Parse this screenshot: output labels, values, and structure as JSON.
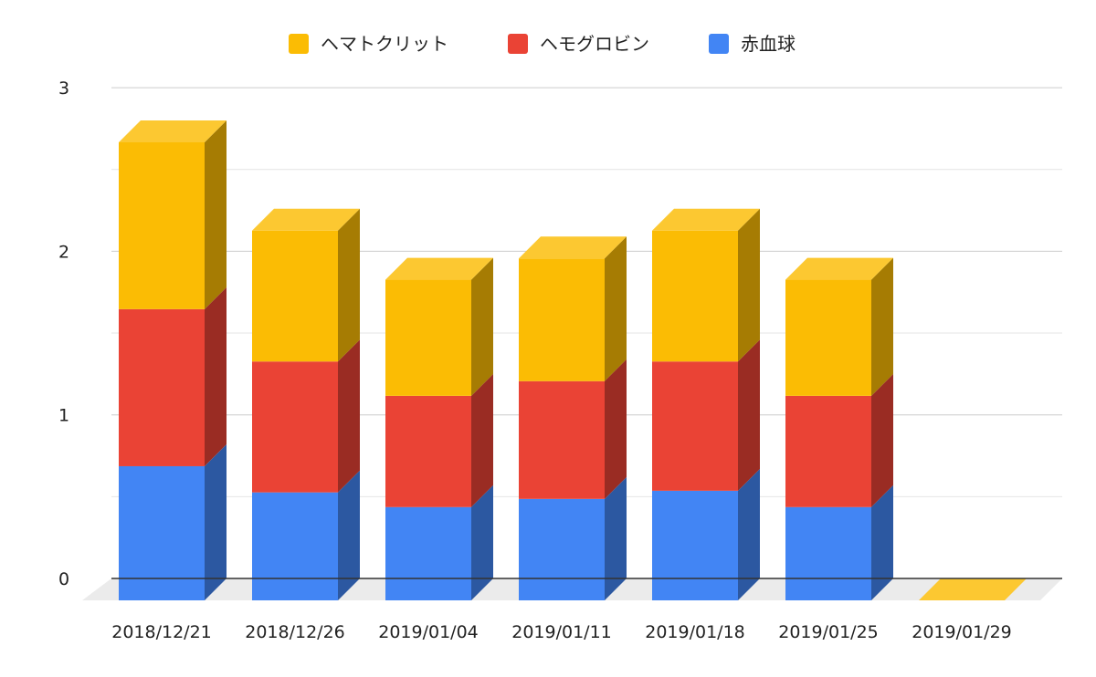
{
  "chart_data": {
    "type": "bar",
    "stacked": true,
    "three_d": true,
    "categories": [
      "2018/12/21",
      "2018/12/26",
      "2019/01/04",
      "2019/01/11",
      "2019/01/18",
      "2019/01/25",
      "2019/01/29"
    ],
    "series": [
      {
        "name": "赤血球",
        "color": "#4285f4",
        "values": [
          0.82,
          0.66,
          0.57,
          0.62,
          0.67,
          0.57,
          0
        ]
      },
      {
        "name": "ヘモグロビン",
        "color": "#ea4335",
        "values": [
          0.96,
          0.8,
          0.68,
          0.72,
          0.79,
          0.68,
          0
        ]
      },
      {
        "name": "ヘマトクリット",
        "color": "#fbbc04",
        "values": [
          1.02,
          0.8,
          0.71,
          0.75,
          0.8,
          0.71,
          0
        ]
      }
    ],
    "legend_order": [
      "ヘマトクリット",
      "ヘモグロビン",
      "赤血球"
    ],
    "legend_position": "top",
    "ylim": [
      0,
      3
    ],
    "yticks": [
      "0",
      "1",
      "2",
      "3"
    ],
    "grid": true
  }
}
